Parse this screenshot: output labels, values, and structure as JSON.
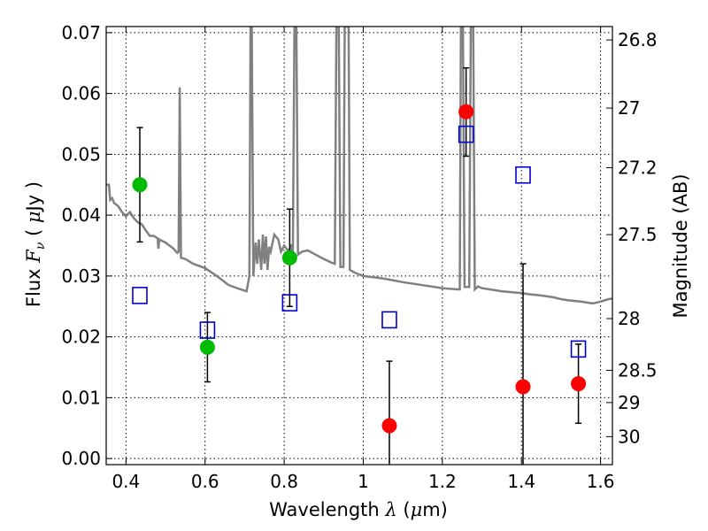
{
  "chart_data": {
    "type": "scatter",
    "xlabel": {
      "pre": "Wavelength ",
      "sym": "λ",
      "post": " (",
      "unit_mu": "μ",
      "unit_rest": "m)"
    },
    "ylabel": {
      "pre": "Flux ",
      "sym": "F",
      "sub": "ν",
      "post": " ( ",
      "unit_mu": "μ",
      "unit_rest": "Jy )"
    },
    "y2label": "Magnitude (AB)",
    "xlim": [
      0.35,
      1.63
    ],
    "ylim": [
      -0.001,
      0.071
    ],
    "xticks": [
      0.4,
      0.6,
      0.8,
      1.0,
      1.2,
      1.4,
      1.6
    ],
    "xtick_labels": [
      "0.4",
      "0.6",
      "0.8",
      "1",
      "1.2",
      "1.4",
      "1.6"
    ],
    "yticks": [
      0.0,
      0.01,
      0.02,
      0.03,
      0.04,
      0.05,
      0.06,
      0.07
    ],
    "ytick_labels": [
      "0.00",
      "0.01",
      "0.02",
      "0.03",
      "0.04",
      "0.05",
      "0.06",
      "0.07"
    ],
    "y2ticks": [
      {
        "flux": 0.0688,
        "label": "26.8"
      },
      {
        "flux": 0.0576,
        "label": "27"
      },
      {
        "flux": 0.0478,
        "label": "27.2"
      },
      {
        "flux": 0.0368,
        "label": "27.5"
      },
      {
        "flux": 0.023,
        "label": "28"
      },
      {
        "flux": 0.0145,
        "label": "28.5"
      },
      {
        "flux": 0.0092,
        "label": "29"
      },
      {
        "flux": 0.0036,
        "label": "30"
      }
    ],
    "grid": true,
    "colors": {
      "green": "#00bb00",
      "red": "#ff0000",
      "blue": "#0000cc",
      "model": "#808080",
      "errorbar": "#000000"
    },
    "series": [
      {
        "marker": "circle",
        "color": "green",
        "points": [
          {
            "x": 0.435,
            "y": 0.045,
            "yerr_lo": 0.0356,
            "yerr_hi": 0.0544
          },
          {
            "x": 0.606,
            "y": 0.0183,
            "yerr_lo": 0.0126,
            "yerr_hi": 0.024
          },
          {
            "x": 0.814,
            "y": 0.033,
            "yerr_lo": 0.025,
            "yerr_hi": 0.041
          }
        ]
      },
      {
        "marker": "circle",
        "color": "red",
        "points": [
          {
            "x": 1.066,
            "y": 0.0054,
            "yerr_lo": -0.001,
            "yerr_hi": 0.016
          },
          {
            "x": 1.26,
            "y": 0.057,
            "yerr_lo": 0.0497,
            "yerr_hi": 0.0642
          },
          {
            "x": 1.404,
            "y": 0.0118,
            "yerr_lo": -0.001,
            "yerr_hi": 0.032
          },
          {
            "x": 1.544,
            "y": 0.0123,
            "yerr_lo": 0.0058,
            "yerr_hi": 0.0188
          }
        ]
      },
      {
        "marker": "square",
        "color": "blue",
        "points": [
          {
            "x": 0.435,
            "y": 0.0268
          },
          {
            "x": 0.606,
            "y": 0.0211
          },
          {
            "x": 0.814,
            "y": 0.0256
          },
          {
            "x": 1.066,
            "y": 0.0228
          },
          {
            "x": 1.26,
            "y": 0.0533
          },
          {
            "x": 1.404,
            "y": 0.0466
          },
          {
            "x": 1.544,
            "y": 0.018
          }
        ]
      }
    ],
    "model_spectrum": [
      [
        0.35,
        0.045
      ],
      [
        0.357,
        0.045
      ],
      [
        0.36,
        0.0425
      ],
      [
        0.365,
        0.0428
      ],
      [
        0.37,
        0.042
      ],
      [
        0.38,
        0.0415
      ],
      [
        0.39,
        0.0405
      ],
      [
        0.4,
        0.0398
      ],
      [
        0.41,
        0.0405
      ],
      [
        0.42,
        0.0395
      ],
      [
        0.43,
        0.0388
      ],
      [
        0.44,
        0.0385
      ],
      [
        0.45,
        0.0375
      ],
      [
        0.46,
        0.0366
      ],
      [
        0.47,
        0.0366
      ],
      [
        0.48,
        0.0362
      ],
      [
        0.482,
        0.0345
      ],
      [
        0.484,
        0.036
      ],
      [
        0.5,
        0.0355
      ],
      [
        0.52,
        0.0345
      ],
      [
        0.53,
        0.0338
      ],
      [
        0.533,
        0.034
      ],
      [
        0.536,
        0.061
      ],
      [
        0.539,
        0.033
      ],
      [
        0.55,
        0.0328
      ],
      [
        0.57,
        0.032
      ],
      [
        0.6,
        0.0313
      ],
      [
        0.63,
        0.03
      ],
      [
        0.66,
        0.0285
      ],
      [
        0.69,
        0.0278
      ],
      [
        0.705,
        0.0275
      ],
      [
        0.712,
        0.03
      ],
      [
        0.715,
        0.071
      ],
      [
        0.718,
        0.071
      ],
      [
        0.722,
        0.03
      ],
      [
        0.728,
        0.0355
      ],
      [
        0.732,
        0.032
      ],
      [
        0.736,
        0.036
      ],
      [
        0.742,
        0.031
      ],
      [
        0.746,
        0.0368
      ],
      [
        0.75,
        0.032
      ],
      [
        0.754,
        0.0365
      ],
      [
        0.758,
        0.031
      ],
      [
        0.762,
        0.0348
      ],
      [
        0.766,
        0.034
      ],
      [
        0.775,
        0.0368
      ],
      [
        0.785,
        0.036
      ],
      [
        0.792,
        0.034
      ],
      [
        0.8,
        0.035
      ],
      [
        0.812,
        0.034
      ],
      [
        0.818,
        0.0352
      ],
      [
        0.822,
        0.0335
      ],
      [
        0.826,
        0.071
      ],
      [
        0.831,
        0.071
      ],
      [
        0.835,
        0.0335
      ],
      [
        0.845,
        0.034
      ],
      [
        0.86,
        0.0342
      ],
      [
        0.88,
        0.0335
      ],
      [
        0.9,
        0.0328
      ],
      [
        0.92,
        0.0322
      ],
      [
        0.928,
        0.032
      ],
      [
        0.932,
        0.071
      ],
      [
        0.938,
        0.071
      ],
      [
        0.942,
        0.0315
      ],
      [
        0.95,
        0.0315
      ],
      [
        0.953,
        0.071
      ],
      [
        0.963,
        0.071
      ],
      [
        0.966,
        0.031
      ],
      [
        0.98,
        0.0305
      ],
      [
        1.0,
        0.03
      ],
      [
        1.05,
        0.0296
      ],
      [
        1.1,
        0.029
      ],
      [
        1.15,
        0.0285
      ],
      [
        1.2,
        0.028
      ],
      [
        1.24,
        0.0278
      ],
      [
        1.244,
        0.0278
      ],
      [
        1.247,
        0.071
      ],
      [
        1.252,
        0.071
      ],
      [
        1.256,
        0.0282
      ],
      [
        1.268,
        0.0282
      ],
      [
        1.272,
        0.071
      ],
      [
        1.278,
        0.071
      ],
      [
        1.282,
        0.0278
      ],
      [
        1.29,
        0.0283
      ],
      [
        1.3,
        0.028
      ],
      [
        1.32,
        0.0278
      ],
      [
        1.35,
        0.0275
      ],
      [
        1.38,
        0.0273
      ],
      [
        1.4,
        0.0272
      ],
      [
        1.42,
        0.027
      ],
      [
        1.45,
        0.0268
      ],
      [
        1.48,
        0.0265
      ],
      [
        1.5,
        0.0262
      ],
      [
        1.52,
        0.026
      ],
      [
        1.55,
        0.0258
      ],
      [
        1.58,
        0.0255
      ],
      [
        1.6,
        0.0258
      ],
      [
        1.62,
        0.0262
      ],
      [
        1.63,
        0.0263
      ]
    ]
  }
}
